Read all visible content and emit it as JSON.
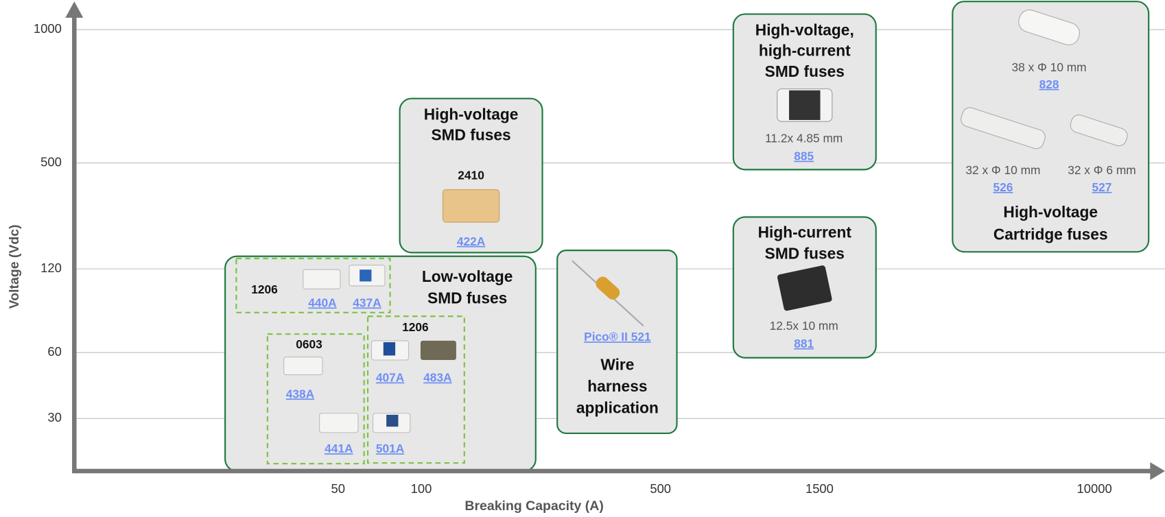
{
  "axes": {
    "x_label": "Breaking Capacity (A)",
    "y_label": "Voltage (Vdc)",
    "x_ticks": [
      "50",
      "100",
      "500",
      "1500",
      "10000"
    ],
    "y_ticks": [
      "1000",
      "500",
      "120",
      "60",
      "30"
    ]
  },
  "groups": [
    {
      "title": [
        "Low-voltage",
        "SMD fuses"
      ],
      "subgroups": [
        {
          "package": "1206",
          "products": [
            "440A",
            "437A"
          ]
        },
        {
          "package": "0603",
          "products": [
            "438A",
            "441A"
          ]
        },
        {
          "package": "1206",
          "products": [
            "407A",
            "483A",
            "501A"
          ]
        }
      ]
    },
    {
      "title": [
        "High-voltage",
        "SMD fuses"
      ],
      "package": "2410",
      "products": [
        "422A"
      ]
    },
    {
      "title": [
        "Wire",
        "harness",
        "application"
      ],
      "products": [
        "Pico® II 521"
      ]
    },
    {
      "title": [
        "High-voltage,",
        "high-current",
        "SMD fuses"
      ],
      "items": [
        {
          "size": "11.2x 4.85 mm",
          "product": "885"
        }
      ]
    },
    {
      "title": [
        "High-current",
        "SMD fuses"
      ],
      "items": [
        {
          "size": "12.5x 10 mm",
          "product": "881"
        }
      ]
    },
    {
      "title": [
        "High-voltage",
        "Cartridge fuses"
      ],
      "items": [
        {
          "size": "38 x Φ 10 mm",
          "product": "828"
        },
        {
          "size": "32 x Φ 10 mm",
          "product": "526"
        },
        {
          "size": "32 x Φ 6 mm",
          "product": "527"
        }
      ]
    }
  ]
}
